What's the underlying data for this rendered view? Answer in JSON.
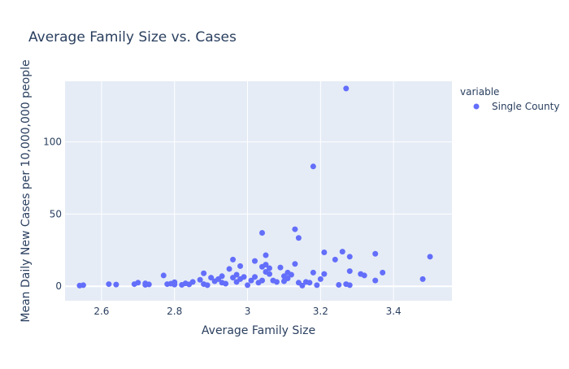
{
  "colors": {
    "plot_bg": "#E5ECF6",
    "grid": "#FFFFFF",
    "marker": "#636EFA",
    "text": "#2A3F5F",
    "tick_text": "#2A3F5F"
  },
  "chart_data": {
    "type": "scatter",
    "title": "Average Family Size vs. Cases",
    "xlabel": "Average Family Size",
    "ylabel": "Mean Daily New Cases per 10,000,000 people",
    "xlim": [
      2.5,
      3.56
    ],
    "ylim": [
      -10,
      142
    ],
    "xticks": [
      2.6,
      2.8,
      3.0,
      3.2,
      3.4
    ],
    "xtick_labels": [
      "2.6",
      "2.8",
      "3",
      "3.2",
      "3.4"
    ],
    "yticks": [
      0,
      50,
      100
    ],
    "ytick_labels": [
      "0",
      "50",
      "100"
    ],
    "grid": true,
    "legend": {
      "title": "variable",
      "placement": "top-right",
      "entries": [
        "Single County"
      ]
    },
    "series": [
      {
        "name": "Single County",
        "points": [
          [
            2.54,
            0.5
          ],
          [
            2.55,
            0.8
          ],
          [
            2.62,
            1.5
          ],
          [
            2.64,
            1.2
          ],
          [
            2.69,
            1.5
          ],
          [
            2.7,
            2.5
          ],
          [
            2.72,
            2.0
          ],
          [
            2.73,
            1.3
          ],
          [
            2.72,
            1.0
          ],
          [
            2.77,
            7.5
          ],
          [
            2.78,
            1.5
          ],
          [
            2.79,
            1.8
          ],
          [
            2.8,
            2.8
          ],
          [
            2.8,
            1.2
          ],
          [
            2.82,
            1.0
          ],
          [
            2.83,
            2.0
          ],
          [
            2.84,
            1.3
          ],
          [
            2.85,
            3.0
          ],
          [
            2.87,
            4.5
          ],
          [
            2.88,
            9.0
          ],
          [
            2.88,
            1.5
          ],
          [
            2.89,
            0.8
          ],
          [
            2.9,
            6.0
          ],
          [
            2.91,
            3.5
          ],
          [
            2.92,
            5.0
          ],
          [
            2.93,
            2.5
          ],
          [
            2.93,
            7.0
          ],
          [
            2.94,
            1.8
          ],
          [
            2.95,
            12.0
          ],
          [
            2.96,
            18.5
          ],
          [
            2.96,
            6.0
          ],
          [
            2.97,
            8.0
          ],
          [
            2.97,
            3.0
          ],
          [
            2.98,
            14.0
          ],
          [
            2.98,
            5.0
          ],
          [
            2.99,
            6.5
          ],
          [
            3.0,
            0.8
          ],
          [
            3.01,
            4.0
          ],
          [
            3.02,
            17.5
          ],
          [
            3.02,
            6.5
          ],
          [
            3.03,
            2.5
          ],
          [
            3.04,
            37.0
          ],
          [
            3.04,
            13.5
          ],
          [
            3.04,
            4.0
          ],
          [
            3.05,
            21.5
          ],
          [
            3.05,
            15.0
          ],
          [
            3.05,
            10.0
          ],
          [
            3.06,
            12.5
          ],
          [
            3.06,
            8.5
          ],
          [
            3.07,
            4.0
          ],
          [
            3.08,
            3.0
          ],
          [
            3.09,
            13.0
          ],
          [
            3.1,
            3.5
          ],
          [
            3.1,
            7.0
          ],
          [
            3.11,
            9.5
          ],
          [
            3.11,
            5.5
          ],
          [
            3.12,
            8.0
          ],
          [
            3.13,
            39.5
          ],
          [
            3.13,
            15.5
          ],
          [
            3.14,
            33.5
          ],
          [
            3.14,
            2.5
          ],
          [
            3.15,
            0.5
          ],
          [
            3.16,
            3.0
          ],
          [
            3.17,
            2.5
          ],
          [
            3.18,
            83.0
          ],
          [
            3.18,
            9.5
          ],
          [
            3.19,
            0.8
          ],
          [
            3.2,
            5.0
          ],
          [
            3.21,
            23.5
          ],
          [
            3.21,
            8.5
          ],
          [
            3.24,
            18.5
          ],
          [
            3.25,
            1.0
          ],
          [
            3.26,
            24.0
          ],
          [
            3.27,
            137.0
          ],
          [
            3.27,
            1.5
          ],
          [
            3.28,
            20.5
          ],
          [
            3.28,
            10.5
          ],
          [
            3.28,
            0.8
          ],
          [
            3.31,
            8.5
          ],
          [
            3.32,
            7.5
          ],
          [
            3.35,
            22.5
          ],
          [
            3.35,
            4.0
          ],
          [
            3.37,
            9.5
          ],
          [
            3.48,
            5.0
          ],
          [
            3.5,
            20.5
          ]
        ]
      }
    ]
  }
}
